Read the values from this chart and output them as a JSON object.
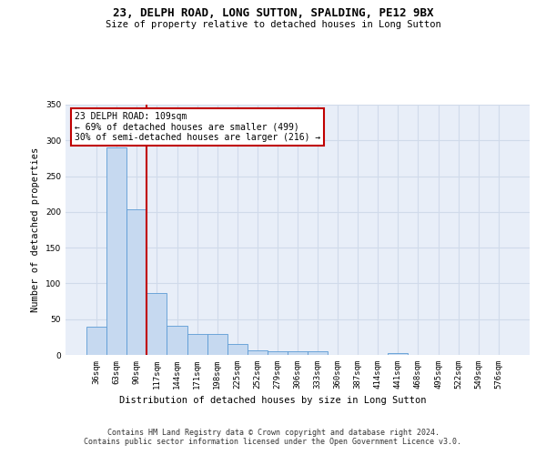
{
  "title1": "23, DELPH ROAD, LONG SUTTON, SPALDING, PE12 9BX",
  "title2": "Size of property relative to detached houses in Long Sutton",
  "xlabel": "Distribution of detached houses by size in Long Sutton",
  "ylabel": "Number of detached properties",
  "categories": [
    "36sqm",
    "63sqm",
    "90sqm",
    "117sqm",
    "144sqm",
    "171sqm",
    "198sqm",
    "225sqm",
    "252sqm",
    "279sqm",
    "306sqm",
    "333sqm",
    "360sqm",
    "387sqm",
    "414sqm",
    "441sqm",
    "468sqm",
    "495sqm",
    "522sqm",
    "549sqm",
    "576sqm"
  ],
  "values": [
    40,
    290,
    204,
    86,
    41,
    29,
    29,
    15,
    7,
    5,
    5,
    5,
    0,
    0,
    0,
    3,
    0,
    0,
    0,
    0,
    0
  ],
  "bar_color": "#c6d9f0",
  "bar_edge_color": "#5b9bd5",
  "vline_color": "#c00000",
  "annotation_text": "23 DELPH ROAD: 109sqm\n← 69% of detached houses are smaller (499)\n30% of semi-detached houses are larger (216) →",
  "annotation_box_color": "#c00000",
  "ylim": [
    0,
    350
  ],
  "yticks": [
    0,
    50,
    100,
    150,
    200,
    250,
    300,
    350
  ],
  "grid_color": "#d0daea",
  "background_color": "#e8eef8",
  "footer": "Contains HM Land Registry data © Crown copyright and database right 2024.\nContains public sector information licensed under the Open Government Licence v3.0."
}
